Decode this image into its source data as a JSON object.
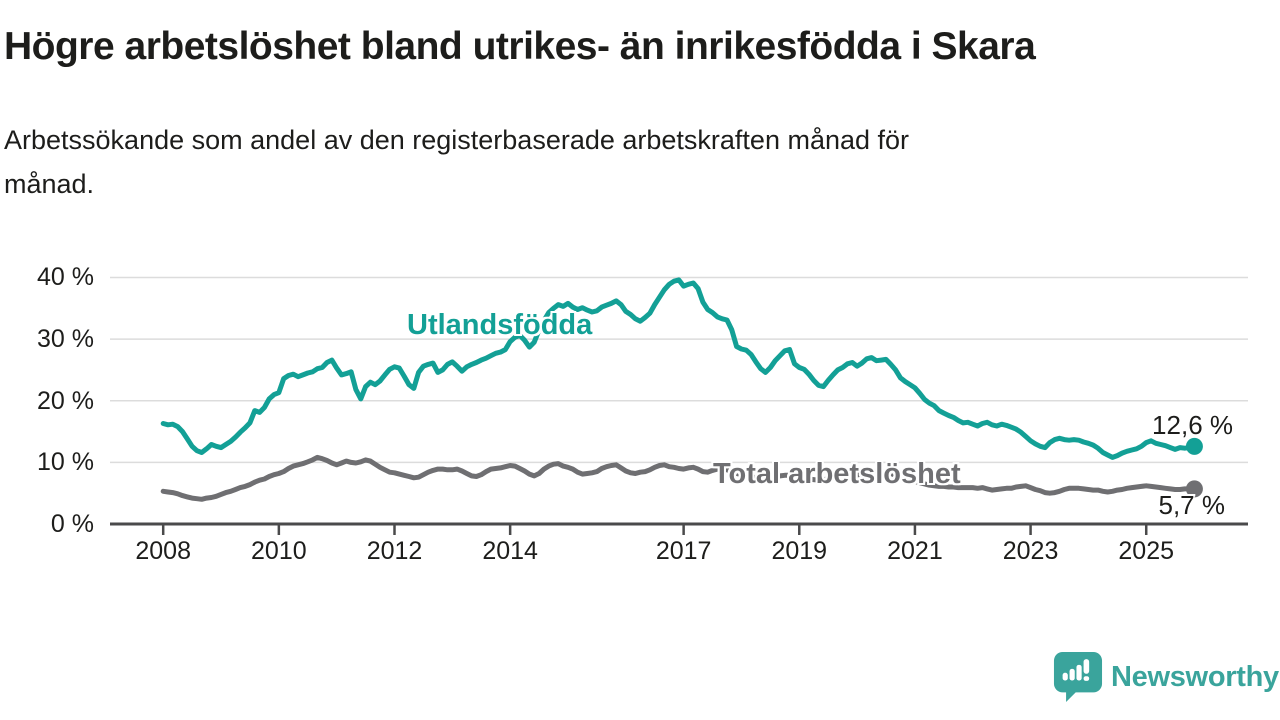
{
  "header": {
    "title": "Högre arbetslöshet bland utrikes- än inrikesfödda i Skara",
    "subtitle_lines": [
      "Arbetssökande som andel av den registerbaserade arbetskraften månad för",
      "månad."
    ]
  },
  "chart_data": {
    "type": "line",
    "title": "Högre arbetslöshet bland utrikes- än inrikesfödda i Skara",
    "subtitle": "Arbetssökande som andel av den registerbaserade arbetskraften månad för månad.",
    "grid": "horizontal",
    "legend_position": "inline-labels",
    "x_range": [
      2007.08,
      2026.76
    ],
    "y_range": [
      0,
      41.7
    ],
    "x_start": 2008.0,
    "x_step": 0.083333,
    "x_ticks": [
      {
        "value": 2008,
        "label": "2008"
      },
      {
        "value": 2010,
        "label": "2010"
      },
      {
        "value": 2012,
        "label": "2012"
      },
      {
        "value": 2014,
        "label": "2014"
      },
      {
        "value": 2017,
        "label": "2017"
      },
      {
        "value": 2019,
        "label": "2019"
      },
      {
        "value": 2021,
        "label": "2021"
      },
      {
        "value": 2023,
        "label": "2023"
      },
      {
        "value": 2025,
        "label": "2025"
      }
    ],
    "y_ticks": [
      {
        "value": 0,
        "label": "0 %"
      },
      {
        "value": 10,
        "label": "10 %"
      },
      {
        "value": 20,
        "label": "20 %"
      },
      {
        "value": 30,
        "label": "30 %"
      },
      {
        "value": 40,
        "label": "40 %"
      }
    ],
    "series": [
      {
        "name": "Utlandsfödda",
        "color": "#13a096",
        "end_label": "12,6 %",
        "end_value": 12.6,
        "values": [
          16.3,
          16.1,
          16.2,
          15.8,
          15.0,
          13.8,
          12.6,
          11.9,
          11.6,
          12.2,
          12.9,
          12.6,
          12.4,
          12.9,
          13.4,
          14.1,
          14.9,
          15.6,
          16.4,
          18.4,
          18.1,
          18.9,
          20.3,
          21.0,
          21.3,
          23.6,
          24.1,
          24.3,
          23.9,
          24.2,
          24.5,
          24.7,
          25.2,
          25.4,
          26.2,
          26.6,
          25.3,
          24.2,
          24.4,
          24.7,
          21.8,
          20.3,
          22.3,
          23.0,
          22.6,
          23.2,
          24.2,
          25.1,
          25.5,
          25.3,
          24.0,
          22.6,
          22.0,
          24.6,
          25.6,
          25.9,
          26.1,
          24.6,
          25.0,
          25.9,
          26.3,
          25.6,
          24.8,
          25.5,
          25.9,
          26.2,
          26.6,
          26.9,
          27.3,
          27.7,
          27.9,
          28.3,
          29.6,
          30.3,
          30.6,
          29.8,
          28.7,
          29.5,
          31.5,
          33.0,
          34.3,
          35.0,
          35.6,
          35.3,
          35.8,
          35.2,
          34.8,
          35.1,
          34.7,
          34.4,
          34.6,
          35.2,
          35.5,
          35.8,
          36.2,
          35.6,
          34.5,
          34.0,
          33.3,
          32.9,
          33.5,
          34.2,
          35.6,
          36.8,
          38.0,
          38.9,
          39.4,
          39.6,
          38.6,
          38.9,
          39.1,
          38.2,
          36.0,
          34.8,
          34.3,
          33.6,
          33.3,
          33.1,
          31.5,
          28.8,
          28.4,
          28.2,
          27.5,
          26.3,
          25.2,
          24.6,
          25.4,
          26.5,
          27.3,
          28.1,
          28.3,
          26.0,
          25.4,
          25.1,
          24.3,
          23.3,
          22.5,
          22.3,
          23.3,
          24.2,
          25.0,
          25.4,
          26.0,
          26.2,
          25.6,
          26.1,
          26.8,
          27.0,
          26.5,
          26.6,
          26.7,
          25.9,
          25.0,
          23.7,
          23.1,
          22.6,
          22.1,
          21.2,
          20.2,
          19.6,
          19.2,
          18.4,
          18.0,
          17.6,
          17.3,
          16.8,
          16.4,
          16.5,
          16.2,
          15.9,
          16.3,
          16.5,
          16.1,
          15.9,
          16.2,
          16.0,
          15.7,
          15.4,
          14.9,
          14.2,
          13.5,
          13.0,
          12.6,
          12.4,
          13.2,
          13.7,
          13.9,
          13.7,
          13.6,
          13.7,
          13.6,
          13.3,
          13.1,
          12.8,
          12.3,
          11.6,
          11.2,
          10.8,
          11.1,
          11.5,
          11.8,
          12.0,
          12.2,
          12.6,
          13.2,
          13.5,
          13.1,
          12.9,
          12.7,
          12.4,
          12.1,
          12.4,
          12.3,
          12.4,
          12.6
        ]
      },
      {
        "name": "Total arbetslöshet",
        "color": "#6f6f72",
        "end_label": "5,7 %",
        "end_value": 5.7,
        "values": [
          5.3,
          5.2,
          5.1,
          4.9,
          4.6,
          4.4,
          4.2,
          4.1,
          4.0,
          4.2,
          4.3,
          4.5,
          4.8,
          5.1,
          5.3,
          5.6,
          5.9,
          6.1,
          6.4,
          6.8,
          7.1,
          7.3,
          7.7,
          8.0,
          8.2,
          8.5,
          9.0,
          9.4,
          9.6,
          9.8,
          10.1,
          10.4,
          10.8,
          10.6,
          10.3,
          9.9,
          9.6,
          9.9,
          10.2,
          10.0,
          9.9,
          10.1,
          10.4,
          10.2,
          9.7,
          9.2,
          8.8,
          8.4,
          8.3,
          8.1,
          7.9,
          7.7,
          7.5,
          7.6,
          8.0,
          8.4,
          8.7,
          8.9,
          8.9,
          8.8,
          8.8,
          8.9,
          8.6,
          8.2,
          7.8,
          7.7,
          8.0,
          8.5,
          8.9,
          9.0,
          9.1,
          9.3,
          9.5,
          9.4,
          9.0,
          8.6,
          8.1,
          7.8,
          8.2,
          8.9,
          9.4,
          9.7,
          9.8,
          9.4,
          9.2,
          8.9,
          8.4,
          8.1,
          8.2,
          8.3,
          8.5,
          9.0,
          9.3,
          9.5,
          9.6,
          9.1,
          8.6,
          8.3,
          8.2,
          8.4,
          8.5,
          8.8,
          9.2,
          9.5,
          9.6,
          9.3,
          9.2,
          9.0,
          8.9,
          9.1,
          9.2,
          8.9,
          8.5,
          8.4,
          8.7,
          8.9,
          9.0,
          8.8,
          8.5,
          8.2,
          8.0,
          7.8,
          7.7,
          7.5,
          7.3,
          7.3,
          7.5,
          7.7,
          7.8,
          7.9,
          7.9,
          7.7,
          7.6,
          7.4,
          7.3,
          7.2,
          7.1,
          7.2,
          7.3,
          7.5,
          7.6,
          7.7,
          7.8,
          7.9,
          7.9,
          8.1,
          8.3,
          8.5,
          8.6,
          8.5,
          8.4,
          8.2,
          7.9,
          7.6,
          7.3,
          7.1,
          6.9,
          6.7,
          6.5,
          6.3,
          6.2,
          6.1,
          6.1,
          6.0,
          6.0,
          5.9,
          5.9,
          5.9,
          5.9,
          5.8,
          5.9,
          5.7,
          5.5,
          5.6,
          5.7,
          5.8,
          5.8,
          6.0,
          6.1,
          6.2,
          5.9,
          5.6,
          5.4,
          5.1,
          5.0,
          5.1,
          5.3,
          5.6,
          5.8,
          5.8,
          5.8,
          5.7,
          5.6,
          5.5,
          5.5,
          5.3,
          5.2,
          5.3,
          5.5,
          5.6,
          5.8,
          5.9,
          6.0,
          6.1,
          6.2,
          6.1,
          6.0,
          5.9,
          5.8,
          5.7,
          5.6,
          5.6,
          5.7,
          5.7,
          5.7
        ]
      }
    ],
    "style": {
      "grid_color": "#dcdcdc",
      "axis_color": "#4a4a4b",
      "line_width": 5
    }
  },
  "footer": {
    "brand": "Newsworthy",
    "brand_color": "#3aa49c"
  }
}
